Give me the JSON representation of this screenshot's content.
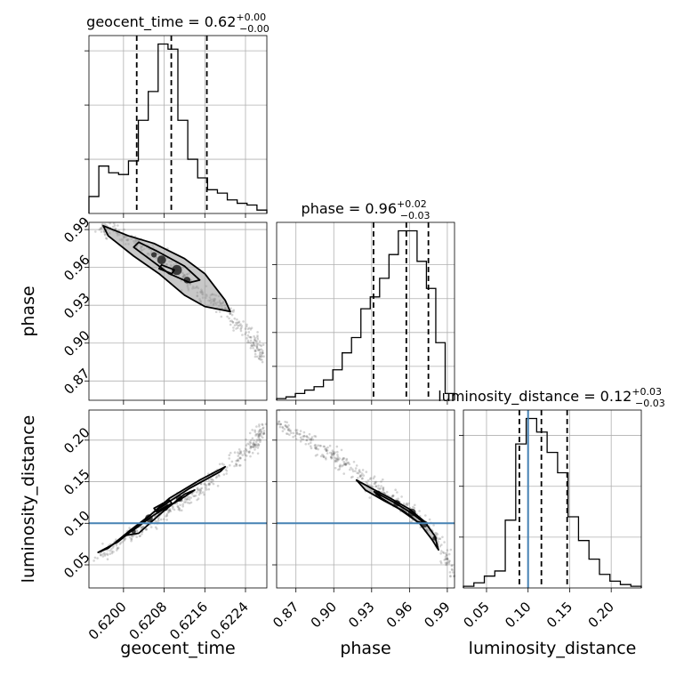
{
  "chart_data": {
    "type": "corner",
    "parameters": [
      "geocent_time",
      "phase",
      "luminosity_distance"
    ],
    "truth_value": {
      "luminosity_distance": 0.1
    },
    "colors": {
      "hist": "#000000",
      "truth": "#4682b4",
      "grid": "#b0b0b0",
      "scatter": "#666666"
    },
    "diagonal": [
      {
        "param": "geocent_time",
        "title_main": "geocent_time = 0.62",
        "err_plus": "+0.00",
        "err_minus": "−0.00",
        "quantiles": [
          0.62026,
          0.62094,
          0.62164
        ],
        "xlim": [
          0.61932,
          0.62282
        ],
        "ylim": [
          0,
          1.05
        ],
        "hist": [
          0.1,
          0.28,
          0.24,
          0.23,
          0.31,
          0.55,
          0.72,
          1.0,
          0.97,
          0.55,
          0.32,
          0.21,
          0.14,
          0.12,
          0.08,
          0.06,
          0.05,
          0.02
        ],
        "yticks": [
          0.32,
          0.64,
          0.96
        ],
        "xticks": [
          0.62,
          0.6208,
          0.6216,
          0.6224
        ]
      },
      {
        "param": "phase",
        "title_main": "phase = 0.96",
        "err_plus": "+0.02",
        "err_minus": "−0.03",
        "quantiles": [
          0.9315,
          0.9575,
          0.975
        ],
        "xlim": [
          0.8547,
          0.9957
        ],
        "ylim": [
          0,
          1.05
        ],
        "hist": [
          0.01,
          0.02,
          0.04,
          0.06,
          0.08,
          0.12,
          0.18,
          0.28,
          0.37,
          0.54,
          0.61,
          0.72,
          0.86,
          1.0,
          1.0,
          0.82,
          0.66,
          0.34,
          0.04
        ],
        "yticks": [
          0.2,
          0.4,
          0.6,
          0.8
        ],
        "xticks": [
          0.87,
          0.9,
          0.93,
          0.96,
          0.99
        ]
      },
      {
        "param": "luminosity_distance",
        "title_main": "luminosity_distance = 0.12",
        "err_plus": "+0.03",
        "err_minus": "−0.03",
        "quantiles": [
          0.0895,
          0.116,
          0.147
        ],
        "xlim": [
          0.0222,
          0.2362
        ],
        "ylim": [
          0,
          1.05
        ],
        "hist": [
          0.01,
          0.03,
          0.07,
          0.1,
          0.4,
          0.85,
          1.0,
          0.92,
          0.8,
          0.68,
          0.42,
          0.28,
          0.17,
          0.08,
          0.04,
          0.02,
          0.01
        ],
        "yticks": [
          0.3,
          0.6,
          0.9
        ],
        "xticks": [
          0.05,
          0.1,
          0.15,
          0.2
        ]
      }
    ],
    "off_diagonal": [
      {
        "x": "geocent_time",
        "y": "phase",
        "xlim": [
          0.61932,
          0.62282
        ],
        "ylim": [
          0.8547,
          0.9957
        ],
        "yticks": [
          0.87,
          0.9,
          0.93,
          0.96,
          0.99
        ],
        "ridge": [
          [
            0.6195,
            0.9925
          ],
          [
            0.62,
            0.984
          ],
          [
            0.6205,
            0.974
          ],
          [
            0.621,
            0.959
          ],
          [
            0.6215,
            0.942
          ],
          [
            0.622,
            0.926
          ],
          [
            0.6225,
            0.906
          ],
          [
            0.62275,
            0.888
          ]
        ],
        "contours": [
          [
            [
              0.6196,
              0.993
            ],
            [
              0.6201,
              0.985
            ],
            [
              0.6206,
              0.979
            ],
            [
              0.6212,
              0.967
            ],
            [
              0.6216,
              0.955
            ],
            [
              0.622,
              0.934
            ],
            [
              0.6221,
              0.925
            ],
            [
              0.6216,
              0.929
            ],
            [
              0.6212,
              0.938
            ],
            [
              0.6207,
              0.955
            ],
            [
              0.6202,
              0.969
            ],
            [
              0.6197,
              0.985
            ]
          ],
          [
            [
              0.6203,
              0.98
            ],
            [
              0.6207,
              0.972
            ],
            [
              0.6212,
              0.961
            ],
            [
              0.6215,
              0.95
            ],
            [
              0.6213,
              0.948
            ],
            [
              0.6209,
              0.955
            ],
            [
              0.6205,
              0.967
            ],
            [
              0.6202,
              0.976
            ]
          ],
          [
            [
              0.62075,
              0.962
            ],
            [
              0.621,
              0.958
            ],
            [
              0.62095,
              0.955
            ],
            [
              0.6207,
              0.959
            ]
          ]
        ],
        "blobs": [
          [
            0.62075,
            0.966,
            8
          ],
          [
            0.62105,
            0.958,
            9
          ],
          [
            0.62125,
            0.95,
            6
          ],
          [
            0.6206,
            0.97,
            5
          ]
        ]
      },
      {
        "x": "geocent_time",
        "y": "luminosity_distance",
        "xlim": [
          0.61932,
          0.62282
        ],
        "ylim": [
          0.0222,
          0.2362
        ],
        "yticks": [
          0.05,
          0.1,
          0.15,
          0.2
        ],
        "truth_line": 0.1,
        "ridge": [
          [
            0.6195,
            0.06
          ],
          [
            0.62,
            0.08
          ],
          [
            0.6205,
            0.1
          ],
          [
            0.621,
            0.12
          ],
          [
            0.6215,
            0.14
          ],
          [
            0.622,
            0.165
          ],
          [
            0.6225,
            0.19
          ],
          [
            0.62275,
            0.215
          ]
        ],
        "contours": [
          [
            [
              0.6195,
              0.065
            ],
            [
              0.6199,
              0.078
            ],
            [
              0.6204,
              0.103
            ],
            [
              0.6209,
              0.13
            ],
            [
              0.6215,
              0.152
            ],
            [
              0.622,
              0.168
            ],
            [
              0.6219,
              0.162
            ],
            [
              0.6213,
              0.142
            ],
            [
              0.6207,
              0.118
            ],
            [
              0.6201,
              0.09
            ],
            [
              0.6197,
              0.07
            ]
          ],
          [
            [
              0.62,
              0.085
            ],
            [
              0.6203,
              0.088
            ],
            [
              0.6207,
              0.11
            ],
            [
              0.6212,
              0.135
            ],
            [
              0.6214,
              0.14
            ],
            [
              0.6211,
              0.128
            ],
            [
              0.6206,
              0.11
            ],
            [
              0.6202,
              0.092
            ]
          ],
          [
            [
              0.6206,
              0.118
            ],
            [
              0.6209,
              0.128
            ],
            [
              0.62095,
              0.124
            ],
            [
              0.62065,
              0.114
            ]
          ]
        ],
        "blobs": [
          [
            0.6205,
            0.106,
            7
          ],
          [
            0.6208,
            0.12,
            8
          ],
          [
            0.6211,
            0.13,
            6
          ],
          [
            0.6202,
            0.09,
            4
          ]
        ]
      },
      {
        "x": "phase",
        "y": "luminosity_distance",
        "xlim": [
          0.8547,
          0.9957
        ],
        "ylim": [
          0.0222,
          0.2362
        ],
        "truth_line": 0.1,
        "ridge": [
          [
            0.856,
            0.22
          ],
          [
            0.88,
            0.2
          ],
          [
            0.9,
            0.182
          ],
          [
            0.92,
            0.16
          ],
          [
            0.94,
            0.137
          ],
          [
            0.96,
            0.115
          ],
          [
            0.98,
            0.085
          ],
          [
            0.995,
            0.04
          ]
        ],
        "contours": [
          [
            [
              0.918,
              0.152
            ],
            [
              0.93,
              0.142
            ],
            [
              0.945,
              0.13
            ],
            [
              0.96,
              0.117
            ],
            [
              0.972,
              0.102
            ],
            [
              0.98,
              0.085
            ],
            [
              0.983,
              0.068
            ],
            [
              0.978,
              0.08
            ],
            [
              0.968,
              0.1
            ],
            [
              0.955,
              0.115
            ],
            [
              0.94,
              0.127
            ],
            [
              0.925,
              0.14
            ]
          ],
          [
            [
              0.932,
              0.138
            ],
            [
              0.948,
              0.125
            ],
            [
              0.962,
              0.112
            ],
            [
              0.972,
              0.1
            ],
            [
              0.966,
              0.102
            ],
            [
              0.952,
              0.117
            ],
            [
              0.938,
              0.13
            ]
          ]
        ],
        "blobs": [
          [
            0.935,
            0.136,
            5
          ],
          [
            0.95,
            0.124,
            6
          ],
          [
            0.962,
            0.113,
            7
          ],
          [
            0.972,
            0.099,
            6
          ],
          [
            0.98,
            0.082,
            4
          ]
        ]
      }
    ]
  }
}
